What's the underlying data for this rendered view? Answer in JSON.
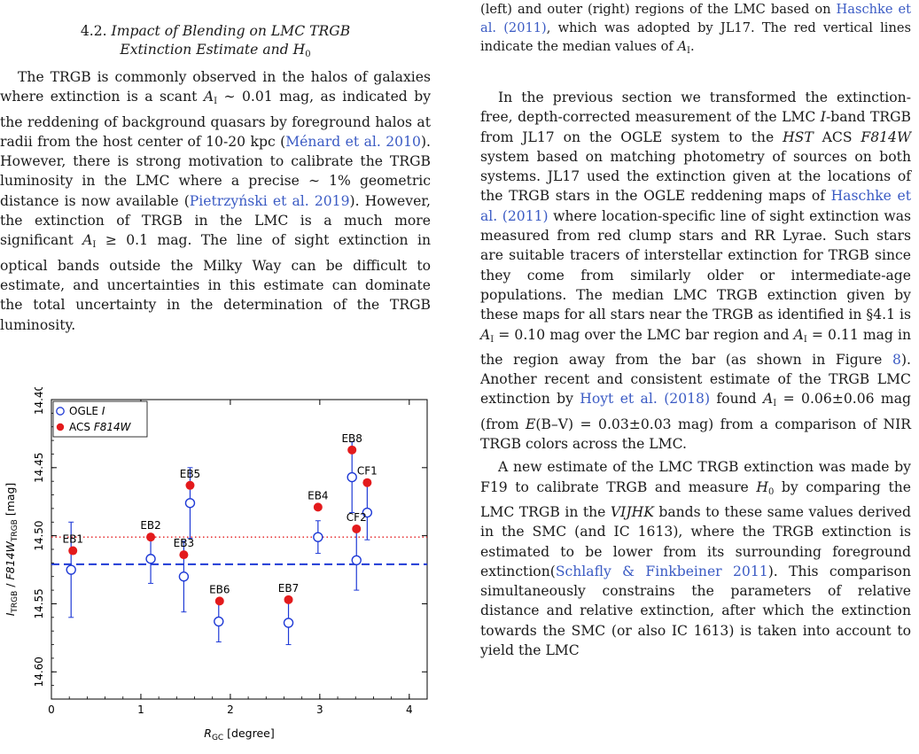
{
  "left": {
    "heading_num": "4.2.",
    "heading_title_l1": "Impact of Blending on LMC TRGB",
    "heading_title_l2": "Extinction Estimate and ",
    "heading_H": "H",
    "heading_H_sub": "0",
    "p1_a": "The TRGB is commonly observed in the halos of galaxies where extinction is a scant ",
    "p1_A": "A",
    "p1_A_sub": "I",
    "p1_b": " ∼ 0.01 mag, as indicated by the reddening of background quasars by foreground halos at radii from the host center of 10-20 kpc (",
    "p1_cite1": "Ménard et al. 2010",
    "p1_c": "). However, there is strong motivation to calibrate the TRGB luminosity in the LMC where a precise ∼ 1% geometric distance is now available (",
    "p1_cite2": "Pietrzyński et al. 2019",
    "p1_d": "). However, the extinction of TRGB in the LMC is a much more significant ",
    "p1_A2": "A",
    "p1_A2_sub": "I",
    "p1_e": " ≥ 0.1 mag. The line of sight extinction in optical bands outside the Milky Way can be difficult to estimate, and uncertainties in this estimate can dominate the total uncertainty in the determination of the TRGB luminosity."
  },
  "right": {
    "cap_a": "(left) and outer (right) regions of the LMC based on ",
    "cap_cite": "Haschke et al. (2011)",
    "cap_b": ", which was adopted by JL17. The red vertical lines indicate the median values of ",
    "cap_A": "A",
    "cap_A_sub": "I",
    "cap_c": ".",
    "p2_a": "In the previous section we transformed the extinction-free, depth-corrected measurement of the LMC ",
    "p2_I": "I",
    "p2_b": "-band TRGB from JL17 on the OGLE system to the ",
    "p2_HST": "HST",
    "p2_c": " ACS ",
    "p2_F814W": "F814W",
    "p2_d": " system based on matching photometry of sources on both systems. JL17 used the extinction given at the locations of the TRGB stars in the OGLE reddening maps of ",
    "p2_cite1": "Haschke et al.",
    "p2_cite1b": "(2011)",
    "p2_e": " where location-specific line of sight extinction was measured from red clump stars and RR Lyrae.  Such stars are suitable tracers of interstellar extinction for TRGB since they come from similarly older or intermediate-age populations.  The median LMC TRGB extinction given by these maps for all stars near the TRGB as identified in §4.1 is ",
    "p2_A1": "A",
    "p2_A1_sub": "I",
    "p2_f": " = 0.10 mag over the LMC bar region and ",
    "p2_A2": "A",
    "p2_A2_sub": "I",
    "p2_g": " = 0.11 mag in the region away from the bar (as shown in Figure ",
    "p2_fig": "8",
    "p2_h": "). Another recent and consistent estimate of the TRGB LMC extinction by ",
    "p2_cite2": "Hoyt et al.",
    "p2_cite2b": "(2018)",
    "p2_i": " found ",
    "p2_A3": "A",
    "p2_A3_sub": "I",
    "p2_j": " = 0.06±0.06 mag (from ",
    "p2_EBV": "E",
    "p2_k": "(B–V) = 0.03±0.03 mag) from a comparison of NIR TRGB colors across the LMC.",
    "p3_a": "A new estimate of the LMC TRGB extinction was made by F19 to calibrate TRGB and measure ",
    "p3_H": "H",
    "p3_H_sub": "0",
    "p3_b": " by comparing the LMC TRGB in the ",
    "p3_bands": "VIJHK",
    "p3_c": " bands to these same values derived in the SMC (and IC 1613), where the TRGB extinction is estimated to be lower from its surrounding foreground extinction(",
    "p3_cite": "Schlafly & Finkbeiner 2011",
    "p3_d": "). This comparison simultaneously constrains the parameters of relative distance and relative extinction, after which the extinction towards the SMC (or also IC 1613) is taken into account to yield the LMC"
  },
  "figure": {
    "ylabel_I": "I",
    "ylabel_sub1": "TRGB",
    "ylabel_mid": " / ",
    "ylabel_F": "F814W",
    "ylabel_sub2": "TRGB",
    "ylabel_unit": " [mag]",
    "xlabel_R": "R",
    "xlabel_sub": "GC",
    "xlabel_unit": " [degree]",
    "legend_ogle": "OGLE ",
    "legend_ogle_i": "I",
    "legend_acs": "ACS ",
    "legend_acs_i": "F814W"
  },
  "chart_data": {
    "type": "scatter",
    "xlabel": "R_GC [degree]",
    "ylabel": "I_TRGB / F814W_TRGB [mag]",
    "xlim": [
      0,
      4.2
    ],
    "ylim": [
      14.62,
      14.4
    ],
    "y_inverted": true,
    "x_ticks": [
      0,
      1,
      2,
      3,
      4
    ],
    "y_ticks": [
      14.4,
      14.45,
      14.5,
      14.55,
      14.6
    ],
    "y_tick_labels": [
      "14.40",
      "14.45",
      "14.50",
      "14.55",
      "14.60"
    ],
    "grid": false,
    "legend_placement": "top-left",
    "series": [
      {
        "name": "OGLE I",
        "marker": "open-circle",
        "color": "#1f3ad6",
        "points": [
          {
            "label": "EB1",
            "x": 0.22,
            "y": 14.525,
            "err": 0.035
          },
          {
            "label": "EB2",
            "x": 1.11,
            "y": 14.517,
            "err": 0.018
          },
          {
            "label": "EB3",
            "x": 1.48,
            "y": 14.53,
            "err": 0.026
          },
          {
            "label": "EB5",
            "x": 1.55,
            "y": 14.476,
            "err": 0.026
          },
          {
            "label": "EB6",
            "x": 1.87,
            "y": 14.563,
            "err": 0.015
          },
          {
            "label": "EB7",
            "x": 2.65,
            "y": 14.564,
            "err": 0.016
          },
          {
            "label": "EB4",
            "x": 2.98,
            "y": 14.501,
            "err": 0.012
          },
          {
            "label": "EB8",
            "x": 3.36,
            "y": 14.457,
            "err": 0.026
          },
          {
            "label": "CF2",
            "x": 3.41,
            "y": 14.518,
            "err": 0.022
          },
          {
            "label": "CF1",
            "x": 3.53,
            "y": 14.483,
            "err": 0.02
          }
        ]
      },
      {
        "name": "ACS F814W",
        "marker": "filled-circle",
        "color": "#e31a1c",
        "points": [
          {
            "label": "EB1",
            "x": 0.24,
            "y": 14.511
          },
          {
            "label": "EB2",
            "x": 1.11,
            "y": 14.501
          },
          {
            "label": "EB3",
            "x": 1.48,
            "y": 14.514
          },
          {
            "label": "EB5",
            "x": 1.55,
            "y": 14.463
          },
          {
            "label": "EB6",
            "x": 1.88,
            "y": 14.548
          },
          {
            "label": "EB7",
            "x": 2.65,
            "y": 14.547
          },
          {
            "label": "EB4",
            "x": 2.98,
            "y": 14.479
          },
          {
            "label": "EB8",
            "x": 3.36,
            "y": 14.437
          },
          {
            "label": "CF2",
            "x": 3.41,
            "y": 14.495
          },
          {
            "label": "CF1",
            "x": 3.53,
            "y": 14.461
          }
        ]
      }
    ],
    "reference_lines": [
      {
        "y": 14.501,
        "color": "#e31a1c",
        "style": "dotted"
      },
      {
        "y": 14.521,
        "color": "#1f3ad6",
        "style": "dashed"
      }
    ]
  }
}
